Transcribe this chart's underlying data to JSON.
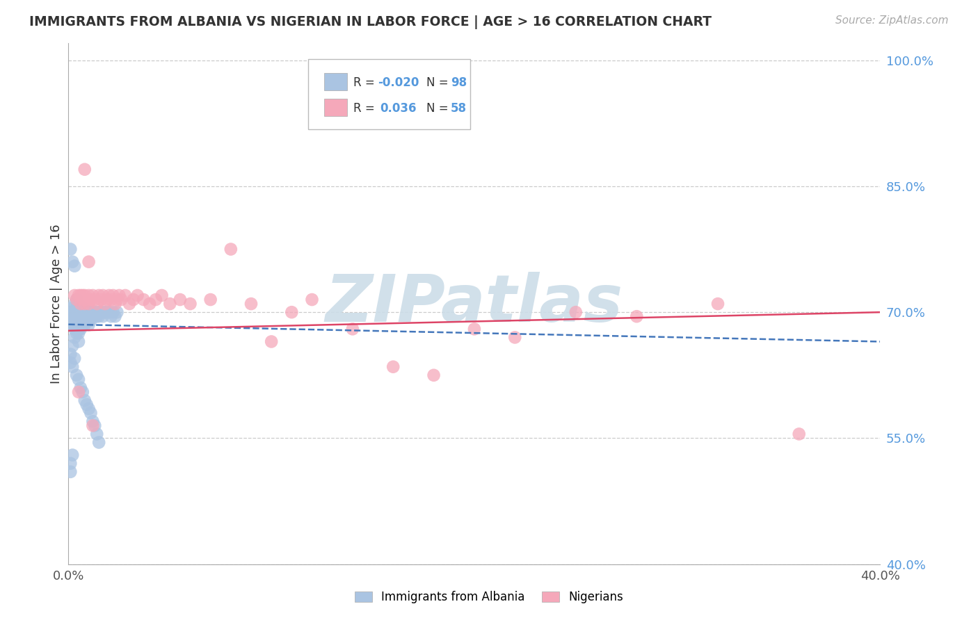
{
  "title": "IMMIGRANTS FROM ALBANIA VS NIGERIAN IN LABOR FORCE | AGE > 16 CORRELATION CHART",
  "source": "Source: ZipAtlas.com",
  "ylabel": "In Labor Force | Age > 16",
  "xlim": [
    0.0,
    0.4
  ],
  "ylim": [
    0.4,
    1.02
  ],
  "yticks": [
    0.4,
    0.55,
    0.7,
    0.85,
    1.0
  ],
  "ytick_labels": [
    "40.0%",
    "55.0%",
    "70.0%",
    "85.0%",
    "100.0%"
  ],
  "xtick_labels": [
    "0.0%",
    "40.0%"
  ],
  "xtick_positions": [
    0.0,
    0.4
  ],
  "albania_R": -0.02,
  "albania_N": 98,
  "nigerian_R": 0.036,
  "nigerian_N": 58,
  "albania_color": "#aac4e2",
  "nigerian_color": "#f5a8ba",
  "albania_line_color": "#4477bb",
  "nigerian_line_color": "#dd4466",
  "watermark": "ZIPatlas",
  "watermark_color": "#ccdde8",
  "albania_line_x0": 0.0,
  "albania_line_y0": 0.6855,
  "albania_line_x1": 0.4,
  "albania_line_y1": 0.665,
  "nigerian_line_x0": 0.0,
  "nigerian_line_y0": 0.678,
  "nigerian_line_x1": 0.4,
  "nigerian_line_y1": 0.7,
  "albania_x": [
    0.001,
    0.001,
    0.001,
    0.001,
    0.002,
    0.002,
    0.002,
    0.002,
    0.002,
    0.003,
    0.003,
    0.003,
    0.003,
    0.003,
    0.003,
    0.004,
    0.004,
    0.004,
    0.004,
    0.004,
    0.004,
    0.004,
    0.005,
    0.005,
    0.005,
    0.005,
    0.005,
    0.005,
    0.005,
    0.006,
    0.006,
    0.006,
    0.006,
    0.006,
    0.006,
    0.007,
    0.007,
    0.007,
    0.007,
    0.007,
    0.008,
    0.008,
    0.008,
    0.008,
    0.009,
    0.009,
    0.009,
    0.01,
    0.01,
    0.01,
    0.01,
    0.011,
    0.011,
    0.011,
    0.012,
    0.012,
    0.013,
    0.013,
    0.014,
    0.014,
    0.015,
    0.015,
    0.016,
    0.017,
    0.017,
    0.018,
    0.019,
    0.02,
    0.021,
    0.022,
    0.023,
    0.024,
    0.001,
    0.001,
    0.002,
    0.003,
    0.004,
    0.005,
    0.006,
    0.007,
    0.008,
    0.009,
    0.01,
    0.011,
    0.012,
    0.013,
    0.014,
    0.015,
    0.002,
    0.003,
    0.004,
    0.005,
    0.001,
    0.002,
    0.003,
    0.001,
    0.001,
    0.002
  ],
  "albania_y": [
    0.7,
    0.69,
    0.695,
    0.685,
    0.7,
    0.695,
    0.69,
    0.685,
    0.705,
    0.7,
    0.695,
    0.69,
    0.685,
    0.68,
    0.71,
    0.7,
    0.695,
    0.69,
    0.685,
    0.68,
    0.705,
    0.715,
    0.7,
    0.695,
    0.69,
    0.685,
    0.68,
    0.675,
    0.71,
    0.7,
    0.695,
    0.69,
    0.685,
    0.68,
    0.705,
    0.7,
    0.695,
    0.69,
    0.685,
    0.705,
    0.7,
    0.695,
    0.69,
    0.685,
    0.7,
    0.695,
    0.69,
    0.7,
    0.695,
    0.69,
    0.685,
    0.7,
    0.695,
    0.69,
    0.7,
    0.695,
    0.7,
    0.695,
    0.7,
    0.695,
    0.7,
    0.695,
    0.7,
    0.7,
    0.695,
    0.7,
    0.7,
    0.7,
    0.695,
    0.7,
    0.695,
    0.7,
    0.65,
    0.64,
    0.66,
    0.645,
    0.625,
    0.62,
    0.61,
    0.605,
    0.595,
    0.59,
    0.585,
    0.58,
    0.57,
    0.565,
    0.555,
    0.545,
    0.635,
    0.67,
    0.675,
    0.665,
    0.775,
    0.76,
    0.755,
    0.51,
    0.52,
    0.53
  ],
  "nigerian_x": [
    0.003,
    0.004,
    0.005,
    0.006,
    0.006,
    0.007,
    0.007,
    0.008,
    0.008,
    0.009,
    0.01,
    0.01,
    0.011,
    0.012,
    0.013,
    0.014,
    0.015,
    0.016,
    0.017,
    0.018,
    0.019,
    0.02,
    0.021,
    0.022,
    0.023,
    0.024,
    0.025,
    0.026,
    0.028,
    0.03,
    0.032,
    0.034,
    0.037,
    0.04,
    0.043,
    0.046,
    0.05,
    0.055,
    0.06,
    0.07,
    0.08,
    0.09,
    0.1,
    0.11,
    0.12,
    0.14,
    0.16,
    0.18,
    0.2,
    0.22,
    0.25,
    0.28,
    0.32,
    0.36,
    0.008,
    0.01,
    0.012,
    0.005
  ],
  "nigerian_y": [
    0.72,
    0.715,
    0.72,
    0.71,
    0.72,
    0.715,
    0.72,
    0.71,
    0.72,
    0.715,
    0.71,
    0.72,
    0.715,
    0.72,
    0.715,
    0.71,
    0.72,
    0.715,
    0.72,
    0.71,
    0.715,
    0.72,
    0.715,
    0.72,
    0.71,
    0.715,
    0.72,
    0.715,
    0.72,
    0.71,
    0.715,
    0.72,
    0.715,
    0.71,
    0.715,
    0.72,
    0.71,
    0.715,
    0.71,
    0.715,
    0.775,
    0.71,
    0.665,
    0.7,
    0.715,
    0.68,
    0.635,
    0.625,
    0.68,
    0.67,
    0.7,
    0.695,
    0.71,
    0.555,
    0.87,
    0.76,
    0.565,
    0.605
  ]
}
